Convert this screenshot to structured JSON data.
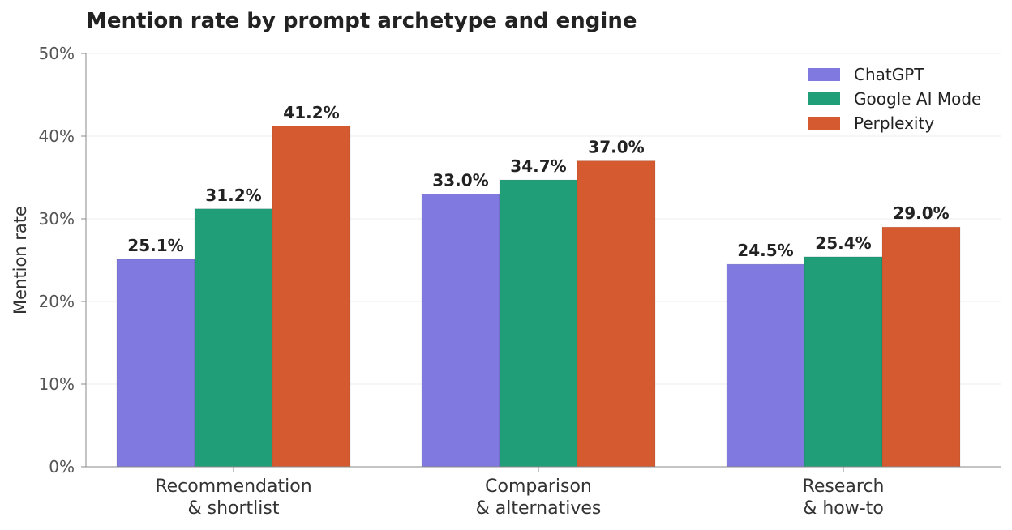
{
  "chart_data": {
    "type": "bar",
    "title": "Mention rate by prompt archetype and engine",
    "xlabel": "",
    "ylabel": "Mention rate",
    "categories": [
      [
        "Recommendation",
        "& shortlist"
      ],
      [
        "Comparison",
        "& alternatives"
      ],
      [
        "Research",
        "& how-to"
      ]
    ],
    "series": [
      {
        "name": "ChatGPT",
        "color": "#8079df",
        "values": [
          25.1,
          33.0,
          24.5
        ],
        "labels": [
          "25.1%",
          "33.0%",
          "24.5%"
        ]
      },
      {
        "name": "Google AI Mode",
        "color": "#1f9e78",
        "values": [
          31.2,
          34.7,
          25.4
        ],
        "labels": [
          "31.2%",
          "34.7%",
          "25.4%"
        ]
      },
      {
        "name": "Perplexity",
        "color": "#d65a30",
        "values": [
          41.2,
          37.0,
          29.0
        ],
        "labels": [
          "41.2%",
          "37.0%",
          "29.0%"
        ]
      }
    ],
    "ylim": [
      0,
      50
    ],
    "yticks": [
      0,
      10,
      20,
      30,
      40,
      50
    ],
    "ytick_labels": [
      "0%",
      "10%",
      "20%",
      "30%",
      "40%",
      "50%"
    ],
    "grid": true,
    "legend": "top-right"
  }
}
